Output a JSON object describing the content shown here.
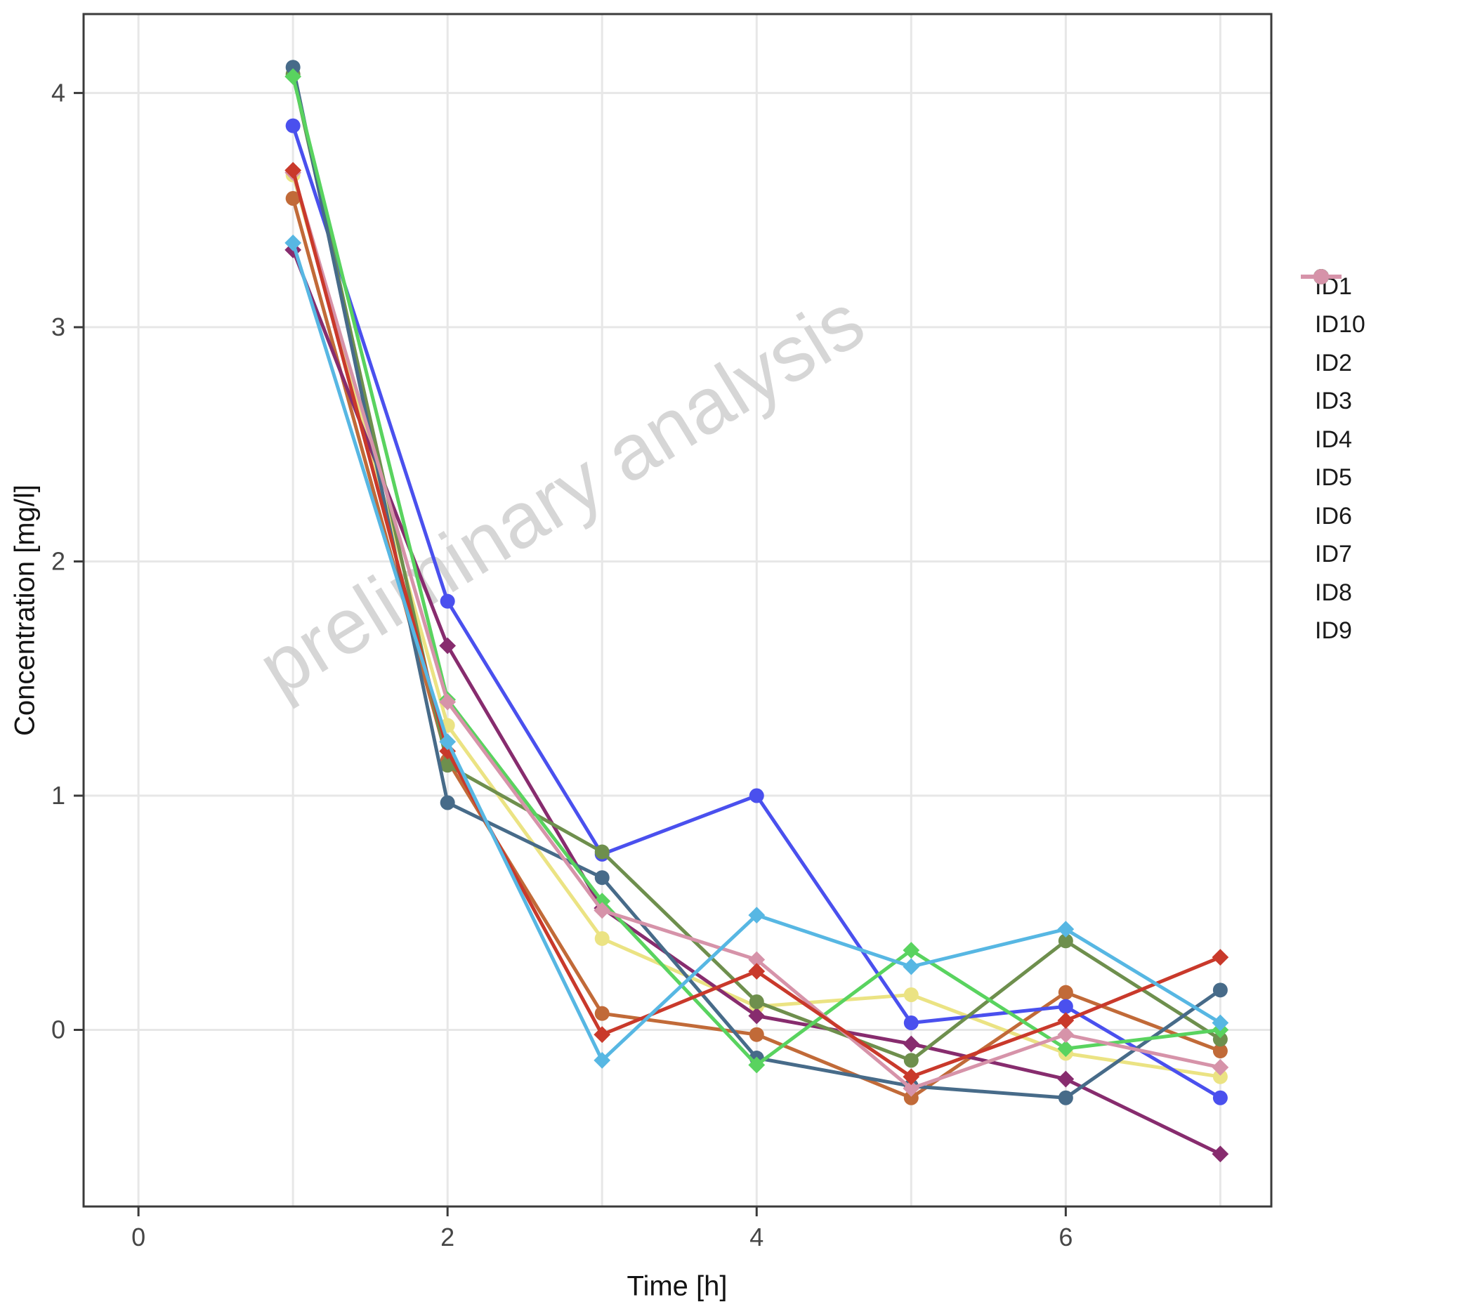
{
  "chart_data": {
    "type": "line",
    "title": "",
    "xlabel": "Time [h]",
    "ylabel": "Concentration [mg/l]",
    "watermark": "preliminary analysis",
    "x": [
      1,
      2,
      3,
      4,
      5,
      6,
      7
    ],
    "xlim": [
      -0.355,
      7.33
    ],
    "ylim": [
      -0.754,
      4.337
    ],
    "x_tick_labels": [
      0,
      2,
      4,
      6
    ],
    "x_gridlines": [
      0,
      1,
      2,
      3,
      4,
      5,
      6,
      7
    ],
    "y_ticks": [
      0,
      1,
      2,
      3,
      4
    ],
    "grid": "on",
    "legend_position": "right",
    "colors": {
      "grid": "#e7e7e7",
      "spine": "#3b3b3b",
      "tick_label": "#464646",
      "watermark": "#d0d0d0"
    },
    "series": [
      {
        "id": "ID1",
        "label": "ID1",
        "color": "#4a50ee",
        "marker": "circle",
        "values": [
          3.86,
          1.83,
          0.75,
          1.0,
          0.03,
          0.1,
          -0.29
        ]
      },
      {
        "id": "ID10",
        "label": "ID10",
        "color": "#c9392b",
        "marker": "diamond",
        "values": [
          3.67,
          1.19,
          -0.02,
          0.25,
          -0.2,
          0.04,
          0.31
        ]
      },
      {
        "id": "ID2",
        "label": "ID2",
        "color": "#6e8f4d",
        "marker": "circle",
        "values": [
          4.08,
          1.13,
          0.76,
          0.12,
          -0.13,
          0.38,
          -0.04
        ]
      },
      {
        "id": "ID3",
        "label": "ID3",
        "color": "#ebe383",
        "marker": "circle",
        "values": [
          3.65,
          1.3,
          0.39,
          0.1,
          0.15,
          -0.1,
          -0.2
        ]
      },
      {
        "id": "ID4",
        "label": "ID4",
        "color": "#476b89",
        "marker": "circle",
        "values": [
          4.11,
          0.97,
          0.65,
          -0.12,
          -0.24,
          -0.29,
          0.17
        ]
      },
      {
        "id": "ID5",
        "label": "ID5",
        "color": "#c16a38",
        "marker": "circle",
        "values": [
          3.55,
          1.15,
          0.07,
          -0.02,
          -0.29,
          0.16,
          -0.09
        ]
      },
      {
        "id": "ID6",
        "label": "ID6",
        "color": "#57b7e3",
        "marker": "diamond",
        "values": [
          3.36,
          1.23,
          -0.13,
          0.49,
          0.27,
          0.43,
          0.03
        ]
      },
      {
        "id": "ID7",
        "label": "ID7",
        "color": "#872c6e",
        "marker": "diamond",
        "values": [
          3.33,
          1.64,
          0.52,
          0.06,
          -0.06,
          -0.21,
          -0.53
        ]
      },
      {
        "id": "ID8",
        "label": "ID8",
        "color": "#59d35f",
        "marker": "diamond",
        "values": [
          4.07,
          1.41,
          0.55,
          -0.15,
          0.34,
          -0.08,
          0.0
        ]
      },
      {
        "id": "ID9",
        "label": "ID9",
        "color": "#d693a9",
        "marker": "diamond",
        "values": [
          3.66,
          1.4,
          0.51,
          0.3,
          -0.25,
          -0.02,
          -0.16
        ]
      }
    ],
    "draw_order": [
      "ID3",
      "ID5",
      "ID7",
      "ID1",
      "ID2",
      "ID4",
      "ID8",
      "ID9",
      "ID10",
      "ID6"
    ]
  }
}
